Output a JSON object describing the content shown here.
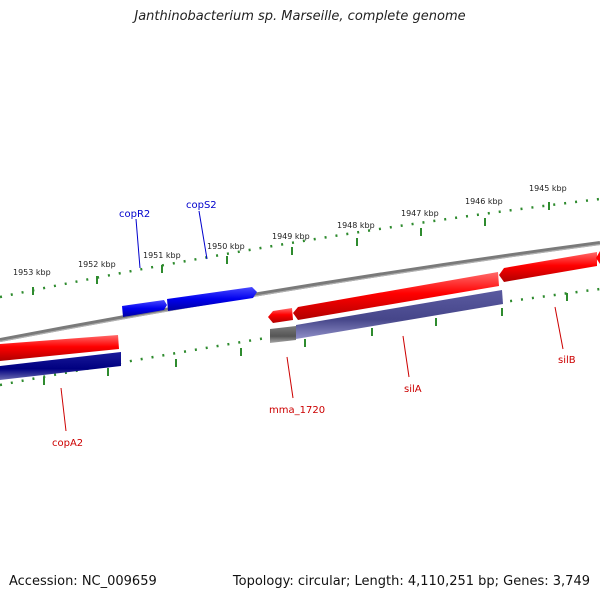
{
  "title": "Janthinobacterium sp. Marseille, complete genome",
  "footer": {
    "accession": "Accession: NC_009659",
    "summary": "Topology: circular; Length: 4,110,251 bp; Genes: 3,749"
  },
  "colors": {
    "tick": "#2e8b2e",
    "backbone": "#808080",
    "forward_gene": "#ff0000",
    "reverse_gene_blue": "#0000ee",
    "dark_blue": "#000080",
    "slate": "#4b4b8f",
    "other": "#606060",
    "label_red": "#cc0000",
    "label_blue": "#0000cc"
  },
  "scale_ticks": [
    "1953 kbp",
    "1952 kbp",
    "1951 kbp",
    "1950 kbp",
    "1949 kbp",
    "1948 kbp",
    "1947 kbp",
    "1946 kbp",
    "1945 kbp"
  ],
  "genes": [
    {
      "name": "copR2",
      "color": "blue"
    },
    {
      "name": "copS2",
      "color": "blue"
    },
    {
      "name": "copA2",
      "color": "red"
    },
    {
      "name": "mma_1720",
      "color": "red"
    },
    {
      "name": "silA",
      "color": "red"
    },
    {
      "name": "silB",
      "color": "red"
    }
  ]
}
